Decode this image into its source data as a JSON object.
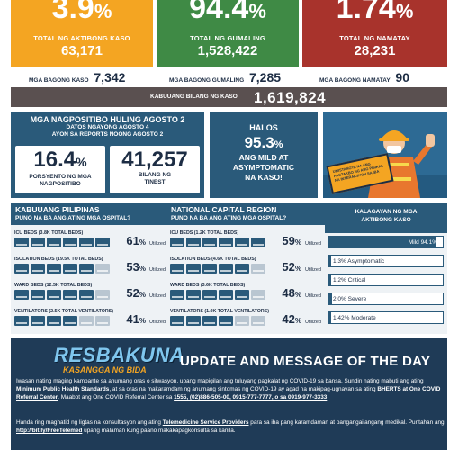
{
  "top": {
    "active": {
      "value": "3.9",
      "pct": "%",
      "label": "TOTAL NG AKTIBONG KASO",
      "count": "63,171",
      "color": "#f4a522"
    },
    "recovered": {
      "value": "94.4",
      "pct": "%",
      "label": "TOTAL NG GUMALING",
      "count": "1,528,422",
      "color": "#3f8a45"
    },
    "died": {
      "value": "1.74",
      "pct": "%",
      "label": "TOTAL NG NAMATAY",
      "count": "28,231",
      "color": "#a8332c"
    }
  },
  "new": {
    "cases_label": "MGA BAGONG KASO",
    "cases": "7,342",
    "recovered_label": "MGA BAGONG GUMALING",
    "recovered": "7,285",
    "died_label": "MGA BAGONG NAMATAY",
    "died": "90"
  },
  "total": {
    "label": "KABUUANG BILANG NG KASO",
    "value": "1,619,824"
  },
  "positivity": {
    "title": "MGA NAGPOSITIBO HULING AGOSTO 2",
    "sub1": "DATOS NGAYONG AGOSTO 4",
    "sub2": "AYON SA REPORTS NOONG AGOSTO 2",
    "rate": "16.4",
    "rate_pct": "%",
    "rate_label1": "PORSYENTO NG MGA",
    "rate_label2": "NAGPOSITIBO",
    "tested": "41,257",
    "tested_label1": "BILANG NG",
    "tested_label2": "TINEST"
  },
  "mild": {
    "t1": "HALOS",
    "value": "95.3",
    "pct": "%",
    "l1": "ANG MILD AT",
    "l2": "ASYMPTOMATIC",
    "l3": "NA KASO!"
  },
  "sign": {
    "text": "UMISTANGYA NA ANG PAGTAKBO NG ANG PISIKAL NA INTERAKSYON SA IBA"
  },
  "ph": {
    "title": "KABUUANG PILIPINAS",
    "subtitle": "PUNO NA BA ANG ATING MGA OSPITAL?",
    "rows": [
      {
        "label": "ICU BEDS (3.8K TOTAL BEDS)",
        "pct": "61",
        "filled": 6
      },
      {
        "label": "ISOLATION BEDS (19.5K TOTAL BEDS)",
        "pct": "53",
        "filled": 5
      },
      {
        "label": "WARD BEDS (12.5K TOTAL BEDS)",
        "pct": "52",
        "filled": 5
      },
      {
        "label": "VENTILATORS (2.5K TOTAL VENTILATORS)",
        "pct": "41",
        "filled": 4
      }
    ]
  },
  "ncr": {
    "title": "NATIONAL CAPITAL REGION",
    "subtitle": "PUNO NA BA ANG ATING MGA OSPITAL?",
    "rows": [
      {
        "label": "ICU BEDS (1.2K TOTAL BEDS)",
        "pct": "59",
        "filled": 6
      },
      {
        "label": "ISOLATION BEDS (4.6K TOTAL BEDS)",
        "pct": "52",
        "filled": 5
      },
      {
        "label": "WARD BEDS (3.6K TOTAL BEDS)",
        "pct": "48",
        "filled": 5
      },
      {
        "label": "VENTILATORS (1.0K TOTAL VENTILATORS)",
        "pct": "42",
        "filled": 4
      }
    ]
  },
  "pct_symbol": "%",
  "utilized": "Utilized",
  "severity": {
    "title1": "KALAGAYAN NG MGA",
    "title2": "AKTIBONG KASO",
    "rows": [
      {
        "label": "Mild 94.1%",
        "value": 94.1
      },
      {
        "label": "1.3% Asymptomatic",
        "value": 1.3
      },
      {
        "label": "1.2% Critical",
        "value": 1.2
      },
      {
        "label": "2.0% Severe",
        "value": 2.0
      },
      {
        "label": "1.42% Moderate",
        "value": 1.42
      }
    ]
  },
  "bottom": {
    "logo1": "RESBAKUNA",
    "logo2": "KASANGGA NG BIDA",
    "title": "UPDATE AND MESSAGE OF THE DAY",
    "p1a": "Iwasan nating maging kampante sa anumang oras o sitwasyon, upang mapigilan ang tuluyang pagkalat ng COVID-19 sa bansa. Sundin nating mabuti ang ating ",
    "p1b": "Minimum Public Health Standards",
    "p1c": ", at sa oras na makaramdam ng anumang sintomas ng COVID-19 ay agad na makipag-ugnayan sa ating ",
    "p1d": "BHERTS at One COVID Referral Center",
    "p1e": ". Maabot ang One COVID Referral Center sa ",
    "p1f": "1555, (02)886-505-00, 0915-777-7777, o sa 0919-977-3333",
    "p2a": "Handa ring maghatid ng ligtas na konsultasyon ang ating ",
    "p2b": "Telemedicine Service Providers",
    "p2c": " para sa iba pang karamdaman at pangangailangang medikal. Puntahan ang ",
    "p2d": "http://bit.ly/FreeTelemed",
    "p2e": " upang malaman kung paano makakapagkonsulta sa kanila."
  }
}
